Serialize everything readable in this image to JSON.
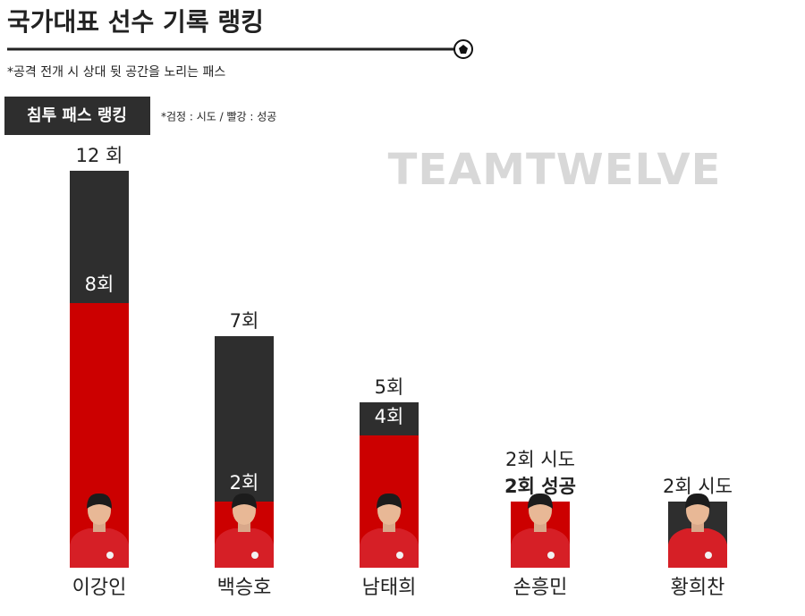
{
  "chart_data": {
    "type": "overlap-bar",
    "title": "국가대표 선수 기록 랭킹",
    "subtitle": "*공격 전개 시 상대 뒷 공간을 노리는 패스",
    "section_label": "침투 패스 랭킹",
    "legend_note": "*검정 : 시도 / 빨강 : 성공",
    "watermark": "TEAMTWELVE",
    "categories": [
      "이강인",
      "백승호",
      "남태희",
      "손흥민",
      "황희찬"
    ],
    "series": [
      {
        "name": "시도",
        "color": "#2e2e2e",
        "values": [
          12,
          7,
          5,
          2,
          2
        ],
        "value_labels": [
          "12 회",
          "7회",
          "5회",
          "2회 시도",
          "2회 시도"
        ]
      },
      {
        "name": "성공",
        "color": "#cc0000",
        "values": [
          8,
          2,
          4,
          2,
          0
        ],
        "value_labels": [
          "8회",
          "2회",
          "4회",
          "2회 성공",
          null
        ]
      }
    ]
  }
}
